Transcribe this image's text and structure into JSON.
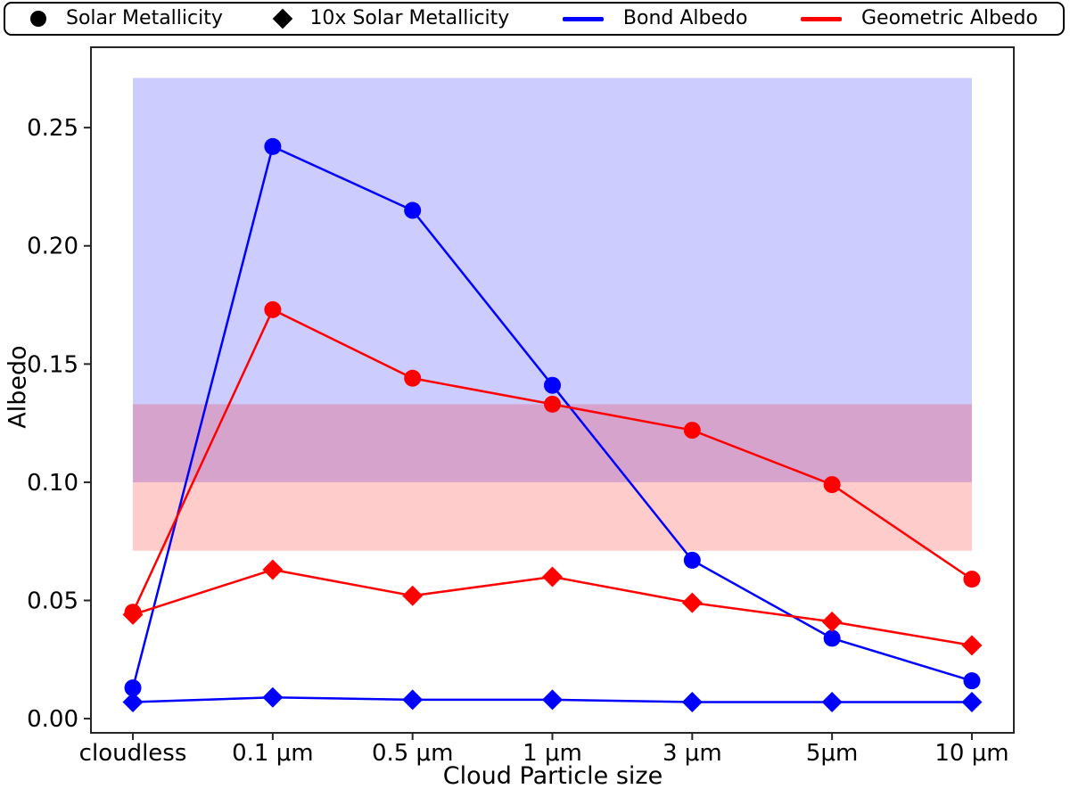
{
  "legend": {
    "items": [
      {
        "label": "Solar Metallicity",
        "marker": "circle",
        "color": "#000000"
      },
      {
        "label": "10x Solar Metallicity",
        "marker": "diamond",
        "color": "#000000"
      },
      {
        "label": "Bond Albedo",
        "marker": "line",
        "color": "#0000ff"
      },
      {
        "label": "Geometric Albedo",
        "marker": "line",
        "color": "#ff0000"
      }
    ]
  },
  "chart_data": {
    "type": "line",
    "title": "",
    "xlabel": "Cloud Particle size",
    "ylabel": "Albedo",
    "categories": [
      "cloudless",
      "0.1 μm",
      "0.5 μm",
      "1 μm",
      "3 μm",
      "5μm",
      "10 μm"
    ],
    "ytick_labels": [
      "0.00",
      "0.05",
      "0.10",
      "0.15",
      "0.20",
      "0.25"
    ],
    "yticks": [
      0.0,
      0.05,
      0.1,
      0.15,
      0.2,
      0.25
    ],
    "ylim": [
      -0.006,
      0.284
    ],
    "xlim": [
      -0.3,
      6.3
    ],
    "grid": false,
    "legend_position": "top",
    "axis_color": "#262626",
    "series": [
      {
        "name": "Bond Albedo - Solar Metallicity",
        "color": "#0000ff",
        "marker": "circle",
        "values": [
          0.013,
          0.242,
          0.215,
          0.141,
          0.067,
          0.034,
          0.016
        ]
      },
      {
        "name": "Bond Albedo - 10x Solar Metallicity",
        "color": "#0000ff",
        "marker": "diamond",
        "values": [
          0.007,
          0.009,
          0.008,
          0.008,
          0.007,
          0.007,
          0.007
        ]
      },
      {
        "name": "Geometric Albedo - Solar Metallicity",
        "color": "#ff0000",
        "marker": "circle",
        "values": [
          0.045,
          0.173,
          0.144,
          0.133,
          0.122,
          0.099,
          0.059
        ]
      },
      {
        "name": "Geometric Albedo - 10x Solar Metallicity",
        "color": "#ff0000",
        "marker": "diamond",
        "values": [
          0.044,
          0.063,
          0.052,
          0.06,
          0.049,
          0.041,
          0.031
        ]
      }
    ],
    "bands": [
      {
        "name": "bond-albedo-shaded-range",
        "color": "#0000ff",
        "alpha": 0.2,
        "ymin": 0.1,
        "ymax": 0.271
      },
      {
        "name": "geometric-albedo-shaded-range",
        "color": "#ff0000",
        "alpha": 0.2,
        "ymin": 0.071,
        "ymax": 0.133
      }
    ]
  }
}
